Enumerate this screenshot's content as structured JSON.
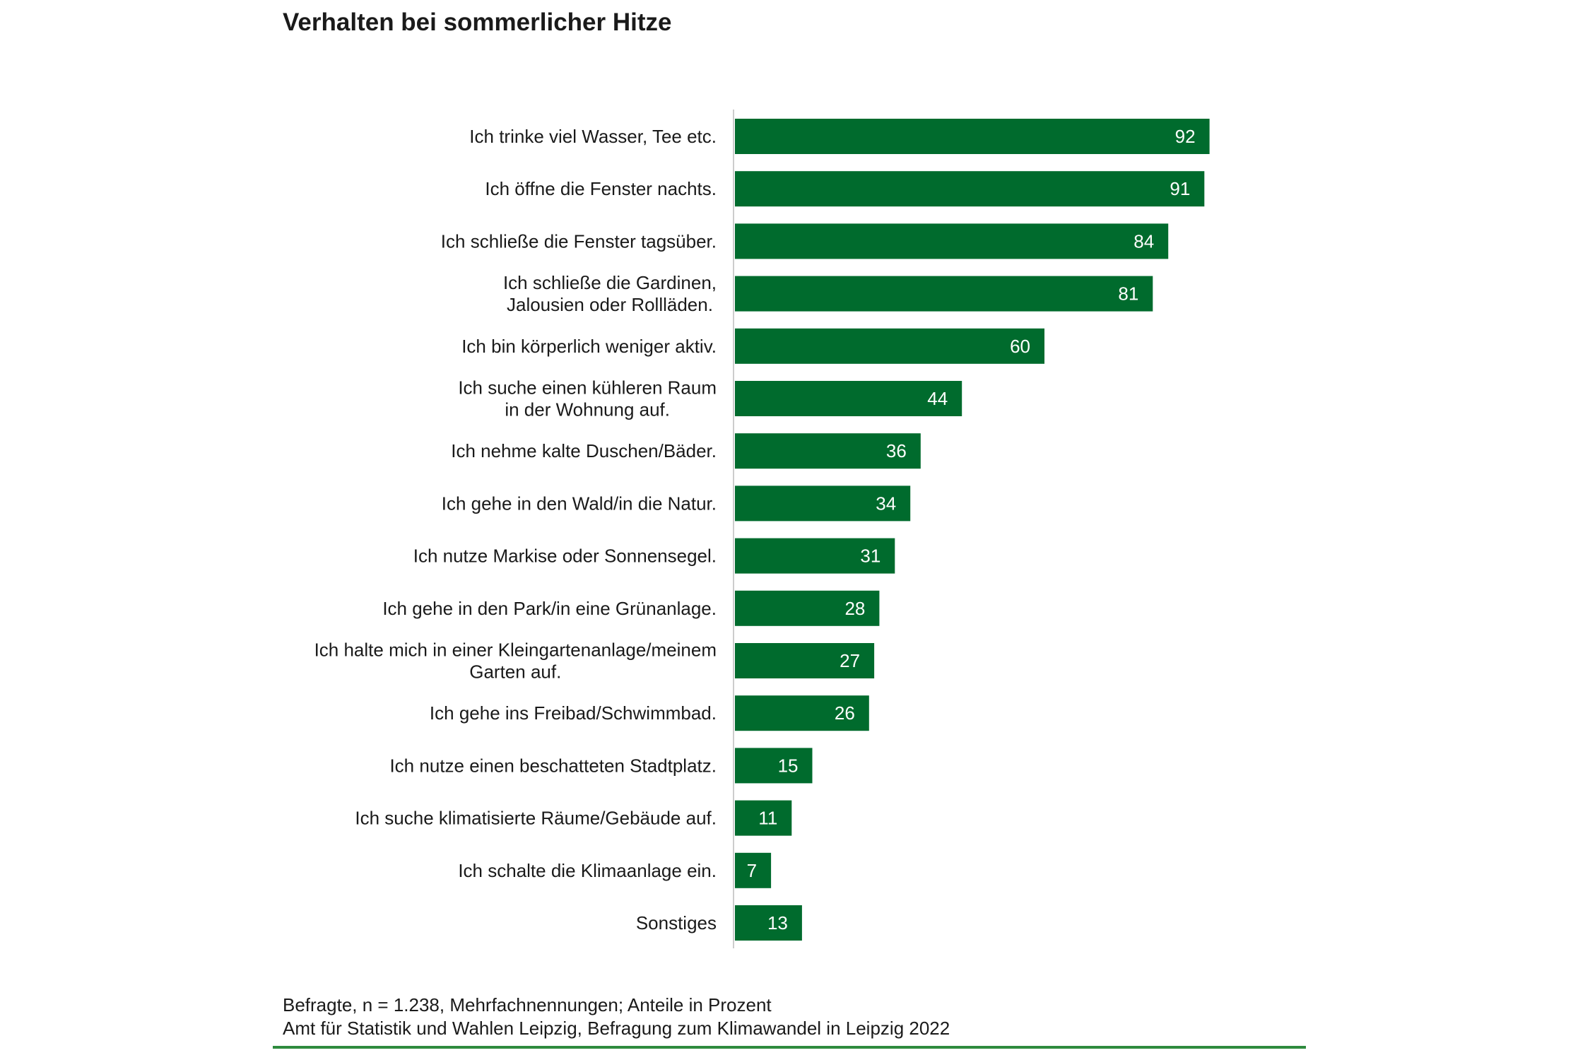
{
  "title": "Verhalten bei sommerlicher Hitze",
  "footnote": {
    "line1": "Befragte, n = 1.238, Mehrfachnennungen; Anteile in Prozent",
    "line2": "Amt für Statistik und Wahlen Leipzig, Befragung zum Klimawandel in Leipzig 2022"
  },
  "colors": {
    "bar": "#006b2d",
    "bar_label": "#ffffff",
    "axis": "#cccccc",
    "footer_rule": "#2e8b3e",
    "text": "#1a1a1a"
  },
  "chart_data": {
    "type": "bar",
    "orientation": "horizontal",
    "title": "Verhalten bei sommerlicher Hitze",
    "xlabel": "",
    "ylabel": "",
    "xlim": [
      0,
      100
    ],
    "grid": false,
    "legend": "none",
    "categories": [
      [
        "Ich trinke viel Wasser, Tee etc."
      ],
      [
        "Ich öffne die Fenster nachts."
      ],
      [
        "Ich schließe die Fenster tagsüber."
      ],
      [
        "Ich schließe die Gardinen,",
        "Jalousien oder Rollläden."
      ],
      [
        "Ich bin körperlich weniger aktiv."
      ],
      [
        "Ich suche einen kühleren Raum",
        "in der Wohnung auf."
      ],
      [
        "Ich nehme kalte Duschen/Bäder."
      ],
      [
        "Ich gehe in den Wald/in die Natur."
      ],
      [
        "Ich nutze Markise oder Sonnensegel."
      ],
      [
        "Ich gehe in den Park/in eine Grünanlage."
      ],
      [
        "Ich halte mich in einer Kleingartenanlage/meinem",
        "Garten auf."
      ],
      [
        "Ich gehe ins Freibad/Schwimmbad."
      ],
      [
        "Ich nutze einen beschatteten Stadtplatz."
      ],
      [
        "Ich suche klimatisierte Räume/Gebäude auf."
      ],
      [
        "Ich schalte die Klimaanlage ein."
      ],
      [
        "Sonstiges"
      ]
    ],
    "values": [
      92,
      91,
      84,
      81,
      60,
      44,
      36,
      34,
      31,
      28,
      27,
      26,
      15,
      11,
      7,
      13
    ]
  }
}
